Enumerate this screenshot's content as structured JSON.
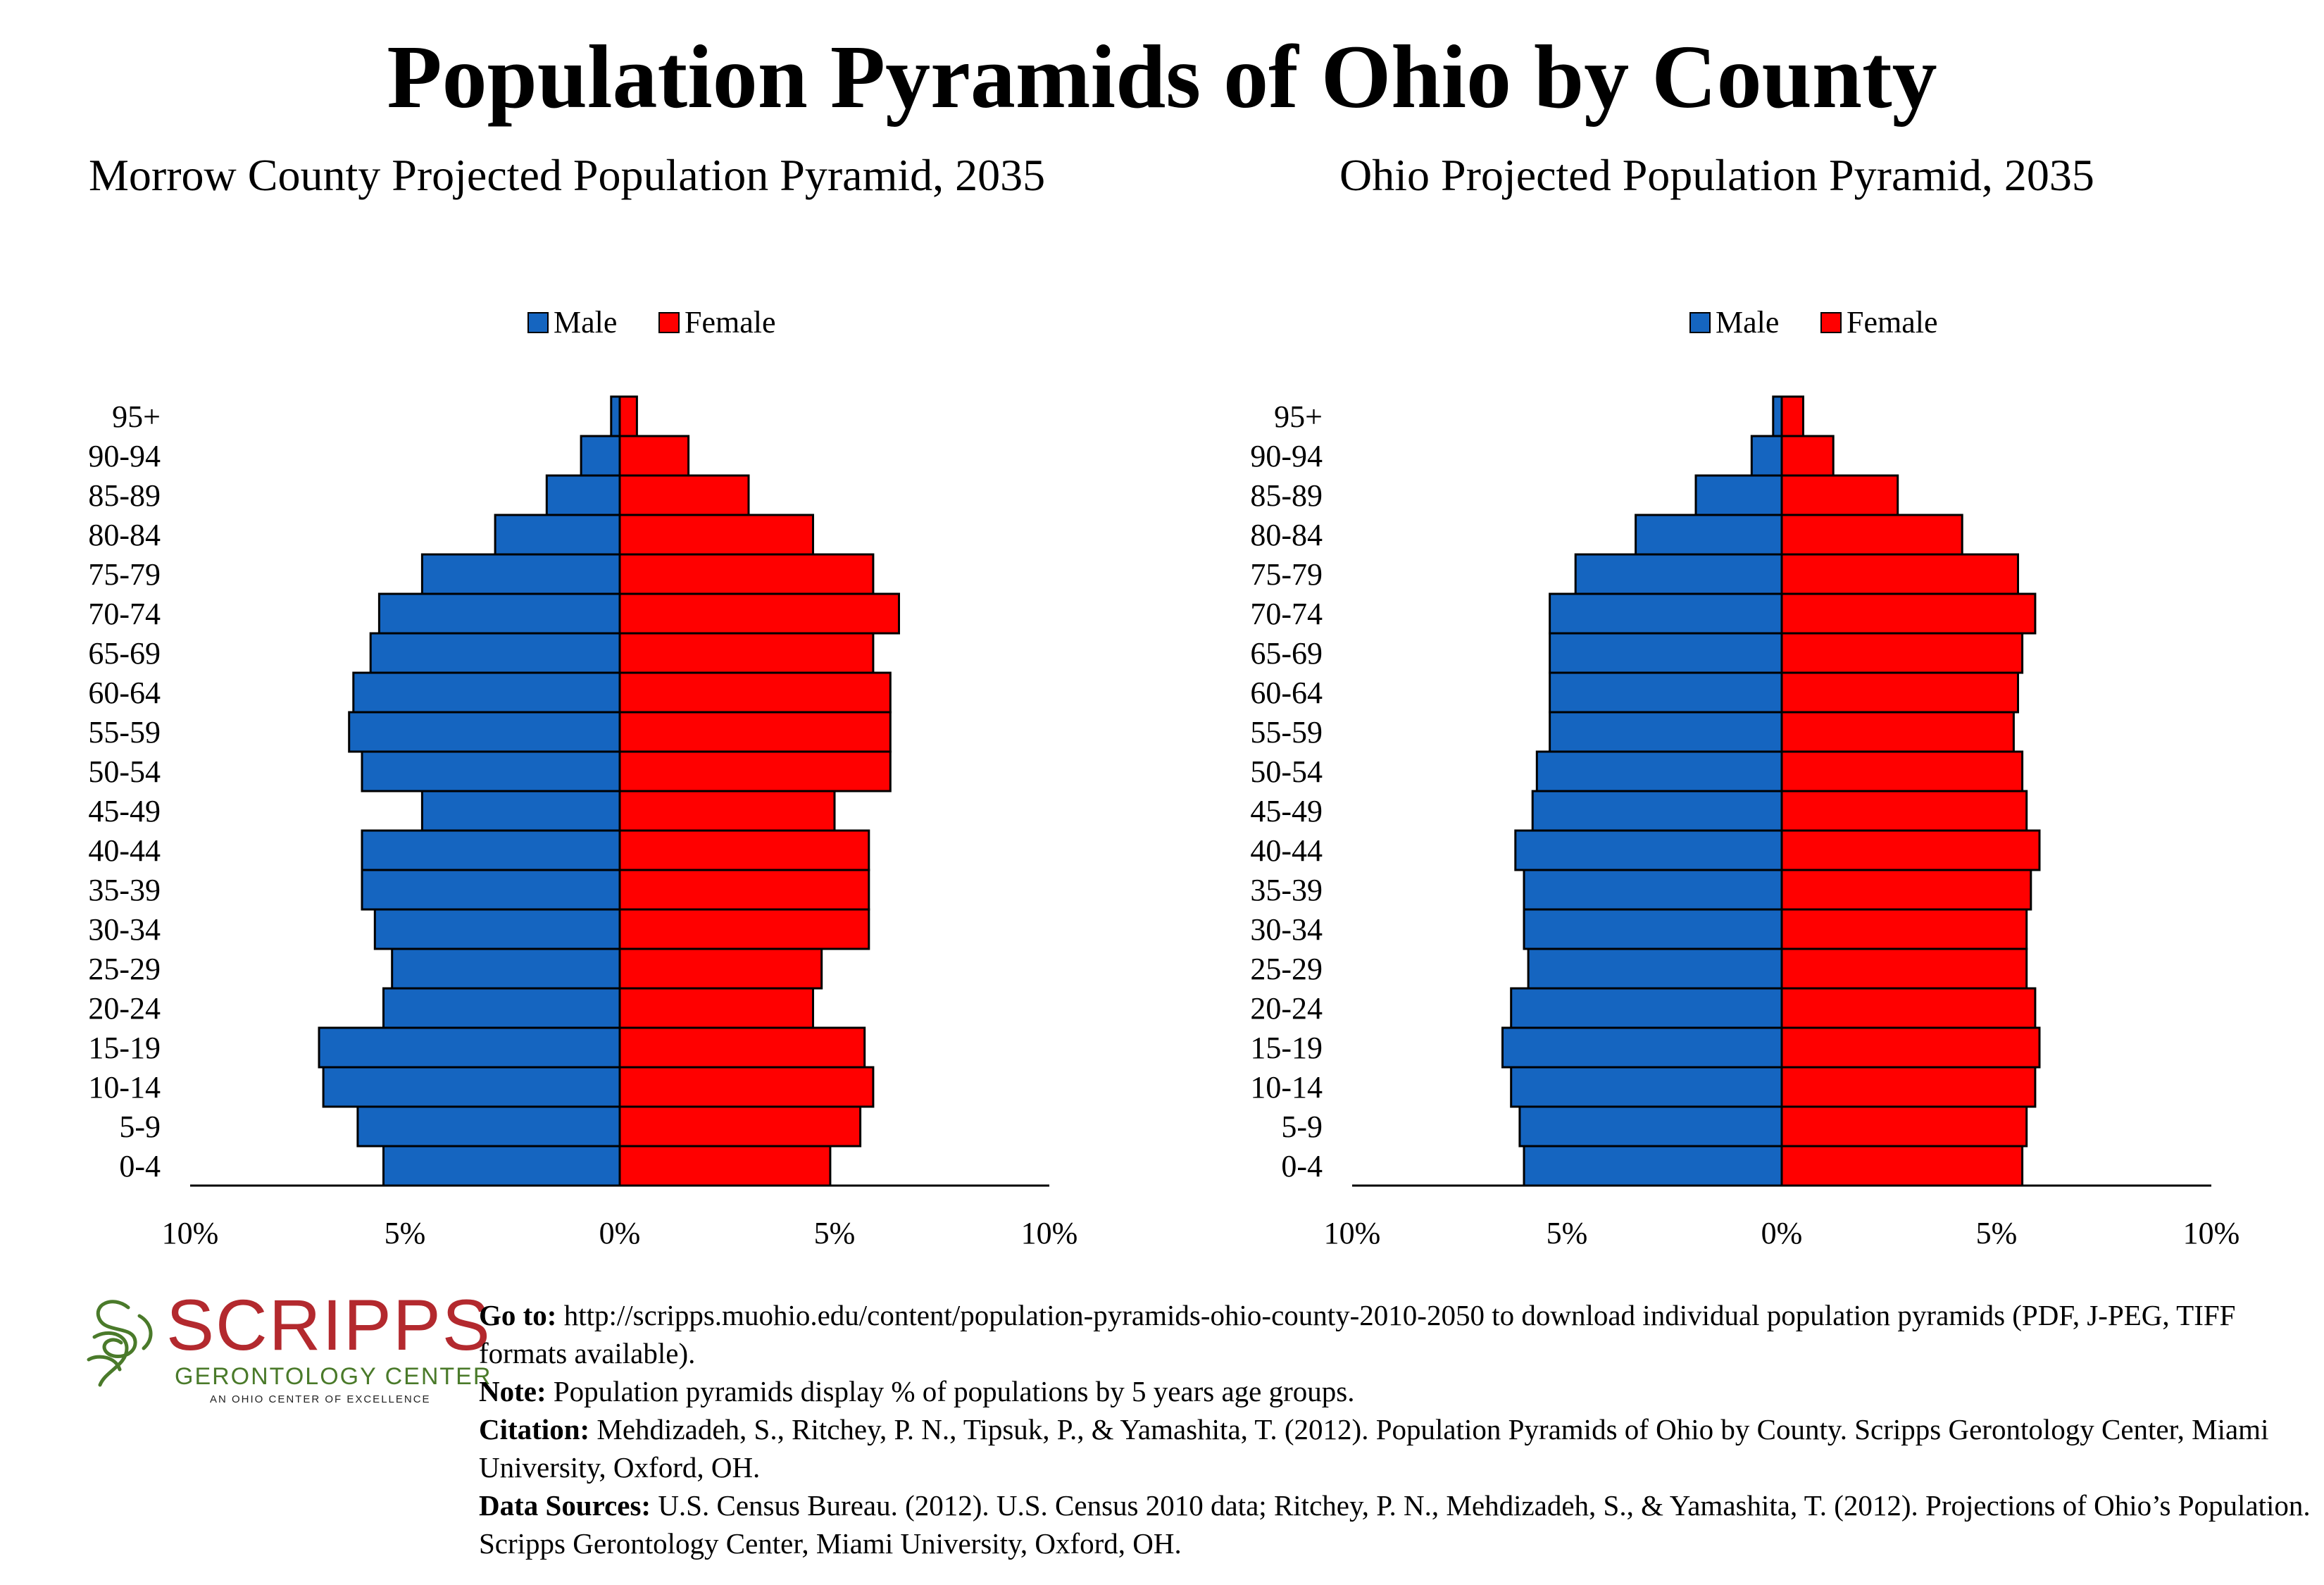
{
  "title": "Population Pyramids of Ohio by County",
  "legend": {
    "male_label": "Male",
    "female_label": "Female",
    "male_color": "#1565c0",
    "female_color": "#ff0000"
  },
  "chart_data": [
    {
      "type": "bar",
      "title": "Morrow County Projected Population Pyramid, 2035",
      "orientation": "horizontal-pyramid",
      "categories": [
        "95+",
        "90-94",
        "85-89",
        "80-84",
        "75-79",
        "70-74",
        "65-69",
        "60-64",
        "55-59",
        "50-54",
        "45-49",
        "40-44",
        "35-39",
        "30-34",
        "25-29",
        "20-24",
        "15-19",
        "10-14",
        "5-9",
        "0-4"
      ],
      "series": [
        {
          "name": "Male",
          "color": "#1565c0",
          "values": [
            0.2,
            0.9,
            1.7,
            2.9,
            4.6,
            5.6,
            5.8,
            6.2,
            6.3,
            6.0,
            4.6,
            6.0,
            6.0,
            5.7,
            5.3,
            5.5,
            7.0,
            6.9,
            6.1,
            5.5
          ]
        },
        {
          "name": "Female",
          "color": "#ff0000",
          "values": [
            0.4,
            1.6,
            3.0,
            4.5,
            5.9,
            6.5,
            5.9,
            6.3,
            6.3,
            6.3,
            5.0,
            5.8,
            5.8,
            5.8,
            4.7,
            4.5,
            5.7,
            5.9,
            5.6,
            4.9
          ]
        }
      ],
      "xlim": [
        -10,
        10
      ],
      "xticks": [
        "10%",
        "5%",
        "0%",
        "5%",
        "10%"
      ],
      "legend_position": "top-center"
    },
    {
      "type": "bar",
      "title": "Ohio Projected Population Pyramid, 2035",
      "orientation": "horizontal-pyramid",
      "categories": [
        "95+",
        "90-94",
        "85-89",
        "80-84",
        "75-79",
        "70-74",
        "65-69",
        "60-64",
        "55-59",
        "50-54",
        "45-49",
        "40-44",
        "35-39",
        "30-34",
        "25-29",
        "20-24",
        "15-19",
        "10-14",
        "5-9",
        "0-4"
      ],
      "series": [
        {
          "name": "Male",
          "color": "#1565c0",
          "values": [
            0.2,
            0.7,
            2.0,
            3.4,
            4.8,
            5.4,
            5.4,
            5.4,
            5.4,
            5.7,
            5.8,
            6.2,
            6.0,
            6.0,
            5.9,
            6.3,
            6.5,
            6.3,
            6.1,
            6.0
          ]
        },
        {
          "name": "Female",
          "color": "#ff0000",
          "values": [
            0.5,
            1.2,
            2.7,
            4.2,
            5.5,
            5.9,
            5.6,
            5.5,
            5.4,
            5.6,
            5.7,
            6.0,
            5.8,
            5.7,
            5.7,
            5.9,
            6.0,
            5.9,
            5.7,
            5.6
          ]
        }
      ],
      "xlim": [
        -10,
        10
      ],
      "xticks": [
        "10%",
        "5%",
        "0%",
        "5%",
        "10%"
      ],
      "legend_position": "top-center"
    }
  ],
  "logo": {
    "wordmark": "SCRIPPS",
    "subtitle": "GERONTOLOGY CENTER",
    "tagline": "AN OHIO CENTER OF EXCELLENCE",
    "red": "#b3292e",
    "green": "#4a7a2a"
  },
  "notes": {
    "goto_label": "Go to:",
    "goto_text": " http://scripps.muohio.edu/content/population-pyramids-ohio-county-2010-2050 to download individual population pyramids (PDF, J-PEG, TIFF formats available).",
    "note_label": "Note:",
    "note_text": " Population pyramids display % of populations by 5 years age groups.",
    "citation_label": "Citation:",
    "citation_text": " Mehdizadeh, S., Ritchey, P. N., Tipsuk, P., & Yamashita, T. (2012). Population Pyramids of Ohio by County. Scripps Gerontology Center, Miami University, Oxford, OH.",
    "sources_label": "Data Sources:",
    "sources_text": " U.S. Census Bureau. (2012). U.S. Census 2010 data; Ritchey, P. N., Mehdizadeh, S., & Yamashita, T. (2012). Projections of Ohio’s Population. Scripps Gerontology Center, Miami University, Oxford, OH."
  }
}
